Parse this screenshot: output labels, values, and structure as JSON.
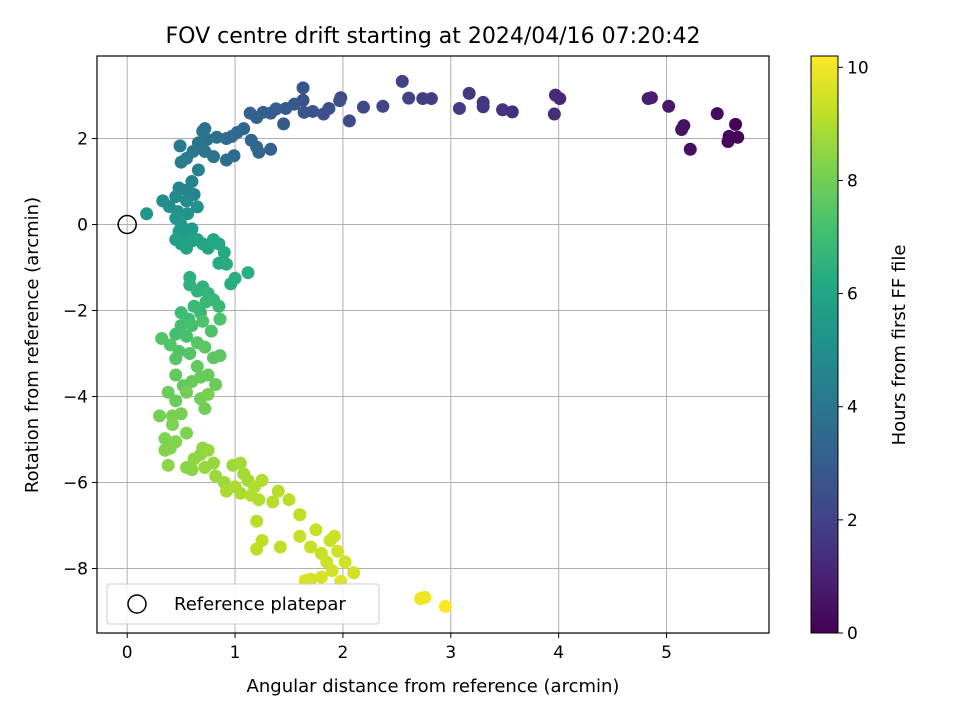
{
  "chart_data": {
    "type": "scatter",
    "title": "FOV centre drift starting at 2024/04/16 07:20:42",
    "xlabel": "Angular distance from reference (arcmin)",
    "ylabel": "Rotation from reference (arcmin)",
    "xlim": [
      -0.28,
      5.95
    ],
    "ylim": [
      -9.5,
      3.92
    ],
    "xticks": [
      0,
      1,
      2,
      3,
      4,
      5
    ],
    "yticks": [
      -8,
      -6,
      -4,
      -2,
      0,
      2
    ],
    "grid": true,
    "legend": {
      "placement": "lower-left",
      "entries": [
        "Reference platepar"
      ]
    },
    "reference_point": {
      "x": 0,
      "y": 0
    },
    "colorbar": {
      "label": "Hours from first FF file",
      "range": [
        0,
        10.2
      ],
      "ticks": [
        0,
        2,
        4,
        6,
        8,
        10
      ],
      "colormap": "viridis"
    },
    "points": [
      {
        "x": 5.64,
        "y": 2.33,
        "c": 0.1
      },
      {
        "x": 5.66,
        "y": 2.03,
        "c": 0.1
      },
      {
        "x": 5.58,
        "y": 2.05,
        "c": 0.1
      },
      {
        "x": 5.57,
        "y": 1.93,
        "c": 0.2
      },
      {
        "x": 5.47,
        "y": 2.58,
        "c": 0.3
      },
      {
        "x": 5.22,
        "y": 1.75,
        "c": 0.4
      },
      {
        "x": 5.16,
        "y": 2.3,
        "c": 0.5
      },
      {
        "x": 5.14,
        "y": 2.21,
        "c": 0.5
      },
      {
        "x": 5.02,
        "y": 2.75,
        "c": 0.7
      },
      {
        "x": 4.86,
        "y": 2.95,
        "c": 0.8
      },
      {
        "x": 4.83,
        "y": 2.93,
        "c": 0.9
      },
      {
        "x": 4.01,
        "y": 2.93,
        "c": 1.1
      },
      {
        "x": 3.97,
        "y": 3.01,
        "c": 1.2
      },
      {
        "x": 3.96,
        "y": 2.57,
        "c": 1.3
      },
      {
        "x": 3.57,
        "y": 2.62,
        "c": 1.4
      },
      {
        "x": 3.48,
        "y": 2.67,
        "c": 1.5
      },
      {
        "x": 3.3,
        "y": 2.84,
        "c": 1.6
      },
      {
        "x": 3.3,
        "y": 2.74,
        "c": 1.6
      },
      {
        "x": 3.17,
        "y": 3.05,
        "c": 1.7
      },
      {
        "x": 3.08,
        "y": 2.7,
        "c": 1.8
      },
      {
        "x": 2.82,
        "y": 2.93,
        "c": 1.9
      },
      {
        "x": 2.74,
        "y": 2.93,
        "c": 1.9
      },
      {
        "x": 2.61,
        "y": 2.94,
        "c": 2.0
      },
      {
        "x": 2.55,
        "y": 3.33,
        "c": 2.0
      },
      {
        "x": 2.37,
        "y": 2.75,
        "c": 2.1
      },
      {
        "x": 2.19,
        "y": 2.73,
        "c": 2.2
      },
      {
        "x": 2.06,
        "y": 2.41,
        "c": 2.3
      },
      {
        "x": 1.98,
        "y": 2.95,
        "c": 2.3
      },
      {
        "x": 1.97,
        "y": 2.88,
        "c": 2.4
      },
      {
        "x": 1.87,
        "y": 2.7,
        "c": 2.5
      },
      {
        "x": 1.82,
        "y": 2.57,
        "c": 2.5
      },
      {
        "x": 1.72,
        "y": 2.63,
        "c": 2.6
      },
      {
        "x": 1.63,
        "y": 2.89,
        "c": 2.6
      },
      {
        "x": 1.63,
        "y": 3.18,
        "c": 2.7
      },
      {
        "x": 1.64,
        "y": 2.61,
        "c": 2.7
      },
      {
        "x": 1.55,
        "y": 2.8,
        "c": 2.8
      },
      {
        "x": 1.47,
        "y": 2.7,
        "c": 2.9
      },
      {
        "x": 1.45,
        "y": 2.34,
        "c": 2.9
      },
      {
        "x": 1.38,
        "y": 2.69,
        "c": 3.0
      },
      {
        "x": 1.33,
        "y": 2.59,
        "c": 3.0
      },
      {
        "x": 1.33,
        "y": 1.75,
        "c": 3.1
      },
      {
        "x": 1.26,
        "y": 2.61,
        "c": 3.1
      },
      {
        "x": 1.2,
        "y": 2.49,
        "c": 3.2
      },
      {
        "x": 1.14,
        "y": 2.59,
        "c": 3.2
      },
      {
        "x": 1.08,
        "y": 2.23,
        "c": 3.3
      },
      {
        "x": 1.15,
        "y": 1.96,
        "c": 3.3
      },
      {
        "x": 1.2,
        "y": 1.8,
        "c": 3.4
      },
      {
        "x": 1.22,
        "y": 1.68,
        "c": 3.4
      },
      {
        "x": 1.02,
        "y": 2.14,
        "c": 3.5
      },
      {
        "x": 0.97,
        "y": 2.05,
        "c": 3.5
      },
      {
        "x": 0.92,
        "y": 2.0,
        "c": 3.6
      },
      {
        "x": 0.99,
        "y": 1.6,
        "c": 3.6
      },
      {
        "x": 0.92,
        "y": 1.5,
        "c": 3.7
      },
      {
        "x": 0.83,
        "y": 2.03,
        "c": 3.7
      },
      {
        "x": 0.74,
        "y": 1.98,
        "c": 3.8
      },
      {
        "x": 0.72,
        "y": 2.23,
        "c": 3.8
      },
      {
        "x": 0.7,
        "y": 2.17,
        "c": 3.9
      },
      {
        "x": 0.8,
        "y": 1.58,
        "c": 3.9
      },
      {
        "x": 0.72,
        "y": 1.7,
        "c": 4.0
      },
      {
        "x": 0.66,
        "y": 1.9,
        "c": 4.0
      },
      {
        "x": 0.61,
        "y": 1.7,
        "c": 4.1
      },
      {
        "x": 0.55,
        "y": 1.54,
        "c": 4.2
      },
      {
        "x": 0.49,
        "y": 1.83,
        "c": 4.2
      },
      {
        "x": 0.5,
        "y": 1.45,
        "c": 4.3
      },
      {
        "x": 0.66,
        "y": 1.27,
        "c": 4.4
      },
      {
        "x": 0.6,
        "y": 1.0,
        "c": 4.5
      },
      {
        "x": 0.55,
        "y": 0.8,
        "c": 4.6
      },
      {
        "x": 0.62,
        "y": 0.7,
        "c": 4.6
      },
      {
        "x": 0.48,
        "y": 0.85,
        "c": 4.7
      },
      {
        "x": 0.45,
        "y": 0.65,
        "c": 4.8
      },
      {
        "x": 0.55,
        "y": 0.55,
        "c": 4.9
      },
      {
        "x": 0.33,
        "y": 0.55,
        "c": 5.0
      },
      {
        "x": 0.39,
        "y": 0.42,
        "c": 5.0
      },
      {
        "x": 0.47,
        "y": 0.3,
        "c": 5.1
      },
      {
        "x": 0.56,
        "y": 0.25,
        "c": 5.2
      },
      {
        "x": 0.65,
        "y": 0.41,
        "c": 5.2
      },
      {
        "x": 0.18,
        "y": 0.25,
        "c": 5.3
      },
      {
        "x": 0.45,
        "y": 0.15,
        "c": 5.3
      },
      {
        "x": 0.5,
        "y": 0.0,
        "c": 5.4
      },
      {
        "x": 0.48,
        "y": -0.16,
        "c": 5.5
      },
      {
        "x": 0.55,
        "y": -0.22,
        "c": 5.5
      },
      {
        "x": 0.6,
        "y": -0.1,
        "c": 5.6
      },
      {
        "x": 0.45,
        "y": -0.35,
        "c": 5.7
      },
      {
        "x": 0.5,
        "y": -0.45,
        "c": 5.7
      },
      {
        "x": 0.6,
        "y": -0.38,
        "c": 5.8
      },
      {
        "x": 0.55,
        "y": -0.55,
        "c": 5.9
      },
      {
        "x": 0.65,
        "y": -0.35,
        "c": 5.9
      },
      {
        "x": 0.7,
        "y": -0.45,
        "c": 6.0
      },
      {
        "x": 0.75,
        "y": -0.55,
        "c": 6.0
      },
      {
        "x": 0.8,
        "y": -0.35,
        "c": 6.1
      },
      {
        "x": 0.85,
        "y": -0.45,
        "c": 6.1
      },
      {
        "x": 0.9,
        "y": -0.65,
        "c": 6.2
      },
      {
        "x": 0.85,
        "y": -0.9,
        "c": 6.2
      },
      {
        "x": 0.92,
        "y": -0.92,
        "c": 6.3
      },
      {
        "x": 0.96,
        "y": -1.38,
        "c": 6.3
      },
      {
        "x": 1.0,
        "y": -1.25,
        "c": 6.4
      },
      {
        "x": 1.12,
        "y": -1.12,
        "c": 6.4
      },
      {
        "x": 0.58,
        "y": -1.23,
        "c": 6.5
      },
      {
        "x": 0.58,
        "y": -1.4,
        "c": 6.5
      },
      {
        "x": 0.65,
        "y": -1.55,
        "c": 6.6
      },
      {
        "x": 0.7,
        "y": -1.45,
        "c": 6.6
      },
      {
        "x": 0.75,
        "y": -1.6,
        "c": 6.7
      },
      {
        "x": 0.8,
        "y": -1.75,
        "c": 6.7
      },
      {
        "x": 0.85,
        "y": -1.9,
        "c": 6.8
      },
      {
        "x": 0.73,
        "y": -1.8,
        "c": 6.8
      },
      {
        "x": 0.62,
        "y": -1.9,
        "c": 6.9
      },
      {
        "x": 0.68,
        "y": -2.05,
        "c": 6.9
      },
      {
        "x": 0.57,
        "y": -2.2,
        "c": 7.0
      },
      {
        "x": 0.5,
        "y": -2.05,
        "c": 7.0
      },
      {
        "x": 0.5,
        "y": -2.35,
        "c": 7.1
      },
      {
        "x": 0.45,
        "y": -2.55,
        "c": 7.1
      },
      {
        "x": 0.55,
        "y": -2.6,
        "c": 7.2
      },
      {
        "x": 0.6,
        "y": -2.35,
        "c": 7.2
      },
      {
        "x": 0.7,
        "y": -2.25,
        "c": 7.3
      },
      {
        "x": 0.78,
        "y": -2.48,
        "c": 7.3
      },
      {
        "x": 0.86,
        "y": -2.2,
        "c": 7.3
      },
      {
        "x": 0.32,
        "y": -2.65,
        "c": 7.4
      },
      {
        "x": 0.4,
        "y": -2.8,
        "c": 7.4
      },
      {
        "x": 0.48,
        "y": -2.95,
        "c": 7.4
      },
      {
        "x": 0.45,
        "y": -3.12,
        "c": 7.5
      },
      {
        "x": 0.58,
        "y": -3.0,
        "c": 7.5
      },
      {
        "x": 0.65,
        "y": -2.75,
        "c": 7.5
      },
      {
        "x": 0.72,
        "y": -2.85,
        "c": 7.6
      },
      {
        "x": 0.8,
        "y": -3.1,
        "c": 7.6
      },
      {
        "x": 0.86,
        "y": -3.05,
        "c": 7.6
      },
      {
        "x": 0.65,
        "y": -3.3,
        "c": 7.7
      },
      {
        "x": 0.45,
        "y": -3.5,
        "c": 7.7
      },
      {
        "x": 0.52,
        "y": -3.75,
        "c": 7.7
      },
      {
        "x": 0.6,
        "y": -3.65,
        "c": 7.8
      },
      {
        "x": 0.68,
        "y": -3.55,
        "c": 7.8
      },
      {
        "x": 0.75,
        "y": -3.5,
        "c": 7.8
      },
      {
        "x": 0.82,
        "y": -3.72,
        "c": 7.9
      },
      {
        "x": 0.38,
        "y": -3.9,
        "c": 7.9
      },
      {
        "x": 0.45,
        "y": -4.1,
        "c": 7.9
      },
      {
        "x": 0.55,
        "y": -3.9,
        "c": 8.0
      },
      {
        "x": 0.68,
        "y": -4.05,
        "c": 8.0
      },
      {
        "x": 0.72,
        "y": -4.28,
        "c": 8.0
      },
      {
        "x": 0.75,
        "y": -3.95,
        "c": 8.1
      },
      {
        "x": 0.3,
        "y": -4.45,
        "c": 8.1
      },
      {
        "x": 0.42,
        "y": -4.45,
        "c": 8.1
      },
      {
        "x": 0.5,
        "y": -4.4,
        "c": 8.1
      },
      {
        "x": 0.42,
        "y": -4.65,
        "c": 8.2
      },
      {
        "x": 0.55,
        "y": -4.85,
        "c": 8.2
      },
      {
        "x": 0.35,
        "y": -4.98,
        "c": 8.2
      },
      {
        "x": 0.45,
        "y": -5.05,
        "c": 8.3
      },
      {
        "x": 0.4,
        "y": -5.2,
        "c": 8.3
      },
      {
        "x": 0.35,
        "y": -5.25,
        "c": 8.3
      },
      {
        "x": 0.38,
        "y": -5.6,
        "c": 8.4
      },
      {
        "x": 0.55,
        "y": -5.65,
        "c": 8.4
      },
      {
        "x": 0.6,
        "y": -5.7,
        "c": 8.4
      },
      {
        "x": 0.62,
        "y": -5.45,
        "c": 8.5
      },
      {
        "x": 0.68,
        "y": -5.35,
        "c": 8.5
      },
      {
        "x": 0.7,
        "y": -5.2,
        "c": 8.5
      },
      {
        "x": 0.75,
        "y": -5.25,
        "c": 8.6
      },
      {
        "x": 0.8,
        "y": -5.55,
        "c": 8.6
      },
      {
        "x": 0.72,
        "y": -5.65,
        "c": 8.6
      },
      {
        "x": 0.82,
        "y": -5.85,
        "c": 8.7
      },
      {
        "x": 0.9,
        "y": -6.0,
        "c": 8.7
      },
      {
        "x": 0.98,
        "y": -5.6,
        "c": 8.7
      },
      {
        "x": 1.05,
        "y": -5.55,
        "c": 8.8
      },
      {
        "x": 1.08,
        "y": -5.8,
        "c": 8.8
      },
      {
        "x": 1.12,
        "y": -5.95,
        "c": 8.8
      },
      {
        "x": 1.0,
        "y": -6.1,
        "c": 8.9
      },
      {
        "x": 0.92,
        "y": -6.2,
        "c": 8.9
      },
      {
        "x": 1.05,
        "y": -6.25,
        "c": 8.9
      },
      {
        "x": 1.15,
        "y": -6.3,
        "c": 9.0
      },
      {
        "x": 1.18,
        "y": -6.1,
        "c": 9.0
      },
      {
        "x": 1.25,
        "y": -5.95,
        "c": 9.0
      },
      {
        "x": 1.22,
        "y": -6.4,
        "c": 9.0
      },
      {
        "x": 1.35,
        "y": -6.45,
        "c": 9.1
      },
      {
        "x": 1.4,
        "y": -6.2,
        "c": 9.1
      },
      {
        "x": 1.5,
        "y": -6.4,
        "c": 9.1
      },
      {
        "x": 1.2,
        "y": -6.9,
        "c": 9.1
      },
      {
        "x": 1.25,
        "y": -7.35,
        "c": 9.2
      },
      {
        "x": 1.2,
        "y": -7.55,
        "c": 9.2
      },
      {
        "x": 1.42,
        "y": -7.5,
        "c": 9.2
      },
      {
        "x": 1.6,
        "y": -6.75,
        "c": 9.2
      },
      {
        "x": 1.6,
        "y": -7.25,
        "c": 9.3
      },
      {
        "x": 1.7,
        "y": -7.5,
        "c": 9.3
      },
      {
        "x": 1.75,
        "y": -7.1,
        "c": 9.3
      },
      {
        "x": 1.8,
        "y": -7.65,
        "c": 9.3
      },
      {
        "x": 1.88,
        "y": -7.35,
        "c": 9.4
      },
      {
        "x": 1.92,
        "y": -7.25,
        "c": 9.4
      },
      {
        "x": 1.85,
        "y": -7.85,
        "c": 9.4
      },
      {
        "x": 1.95,
        "y": -7.6,
        "c": 9.5
      },
      {
        "x": 2.02,
        "y": -7.85,
        "c": 9.5
      },
      {
        "x": 2.1,
        "y": -8.1,
        "c": 9.5
      },
      {
        "x": 1.9,
        "y": -8.05,
        "c": 9.5
      },
      {
        "x": 1.8,
        "y": -8.2,
        "c": 9.6
      },
      {
        "x": 1.7,
        "y": -8.25,
        "c": 9.6
      },
      {
        "x": 1.65,
        "y": -8.28,
        "c": 9.6
      },
      {
        "x": 1.98,
        "y": -8.3,
        "c": 9.7
      },
      {
        "x": 2.72,
        "y": -8.7,
        "c": 10.0
      },
      {
        "x": 2.76,
        "y": -8.67,
        "c": 10.0
      },
      {
        "x": 2.95,
        "y": -8.88,
        "c": 10.2
      }
    ]
  }
}
